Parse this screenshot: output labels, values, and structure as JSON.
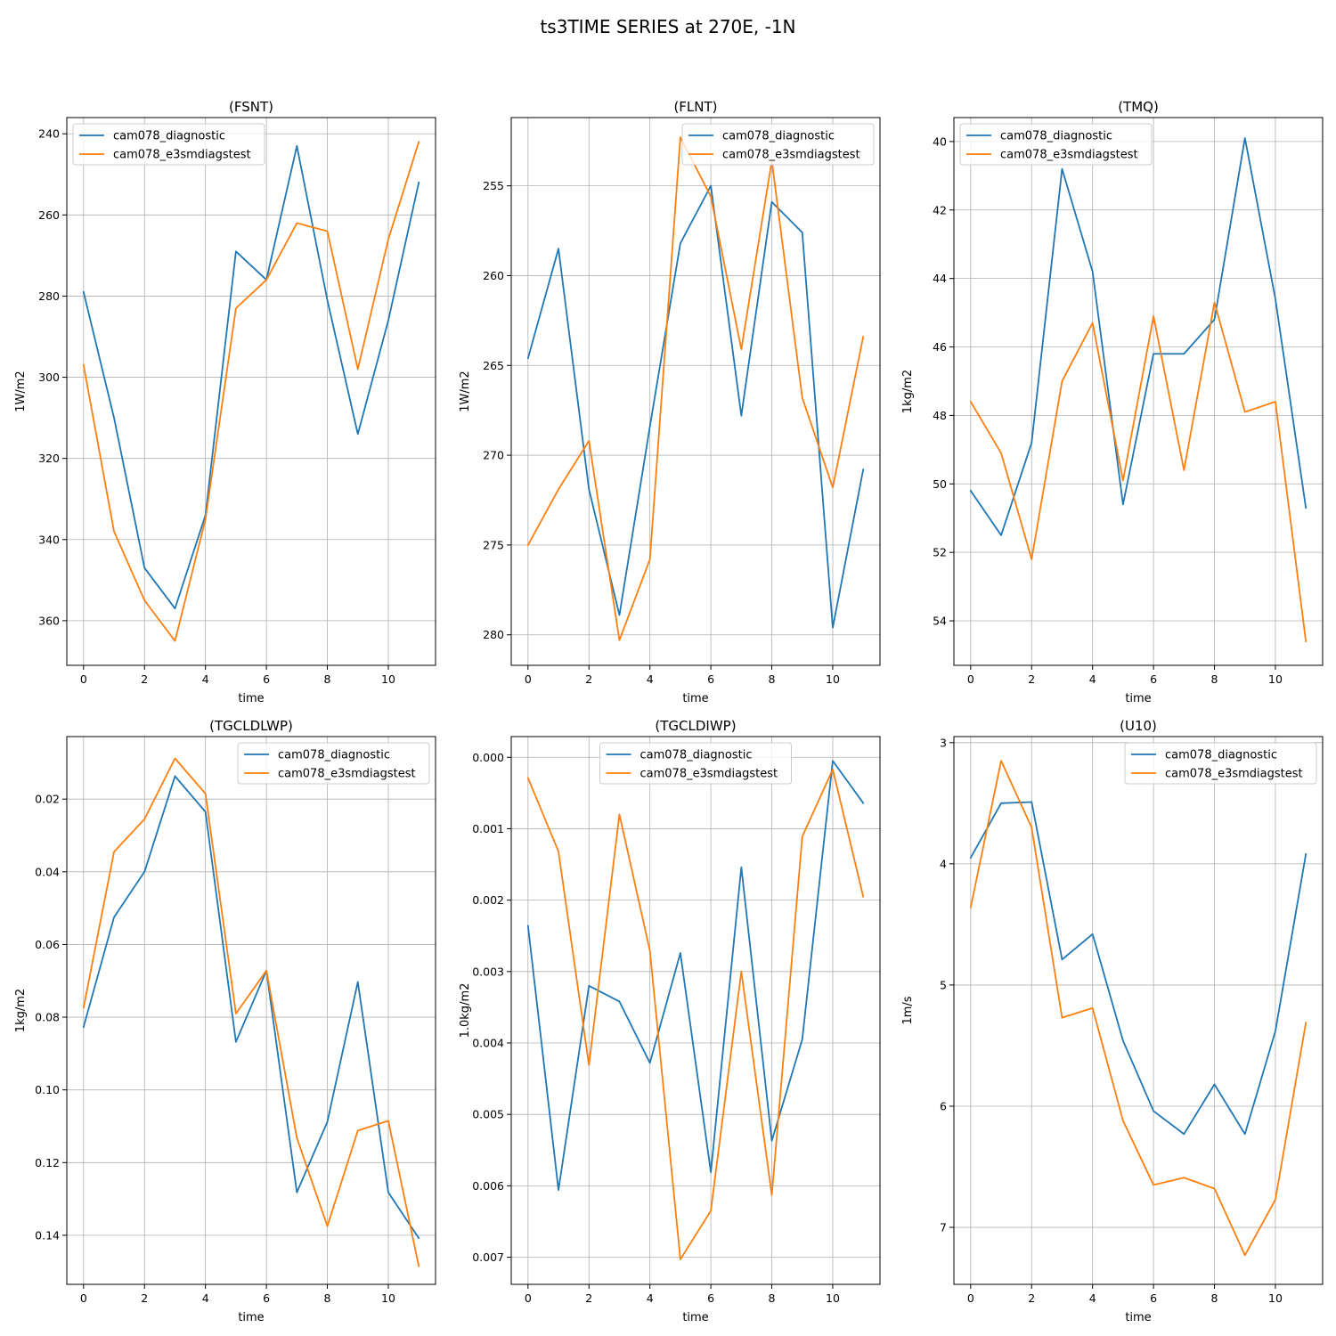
{
  "figure": {
    "title": "ts3TIME SERIES at 270E, -1N"
  },
  "colors": {
    "cam078_diagnostic": "#1f77b4",
    "cam078_e3smdiagstest": "#ff7f0e"
  },
  "chart_data": [
    {
      "type": "line",
      "title": "(FSNT)",
      "xlabel": "time",
      "ylabel": "1W/m2",
      "y_inverted": true,
      "grid": true,
      "legend_position": "upper-left",
      "xlim": [
        -0.55,
        11.55
      ],
      "ylim": [
        236,
        371
      ],
      "xticks": [
        0,
        2,
        4,
        6,
        8,
        10
      ],
      "xtick_labels": [
        "0",
        "2",
        "4",
        "6",
        "8",
        "10"
      ],
      "yticks": [
        240,
        260,
        280,
        300,
        320,
        340,
        360
      ],
      "ytick_labels": [
        "240",
        "260",
        "280",
        "300",
        "320",
        "340",
        "360"
      ],
      "x": [
        0,
        1,
        2,
        3,
        4,
        5,
        6,
        7,
        8,
        9,
        10,
        11
      ],
      "series": [
        {
          "name": "cam078_diagnostic",
          "values": [
            279,
            310,
            347,
            357,
            334,
            269,
            276,
            243,
            281,
            314,
            286,
            252
          ]
        },
        {
          "name": "cam078_e3smdiagstest",
          "values": [
            297,
            338,
            355,
            365,
            335,
            283,
            276,
            262,
            264,
            298,
            266,
            242
          ]
        }
      ]
    },
    {
      "type": "line",
      "title": "(FLNT)",
      "xlabel": "time",
      "ylabel": "1W/m2",
      "y_inverted": true,
      "grid": true,
      "legend_position": "upper-right",
      "xlim": [
        -0.55,
        11.55
      ],
      "ylim": [
        251.2,
        281.7
      ],
      "xticks": [
        0,
        2,
        4,
        6,
        8,
        10
      ],
      "xtick_labels": [
        "0",
        "2",
        "4",
        "6",
        "8",
        "10"
      ],
      "yticks": [
        255,
        260,
        265,
        270,
        275,
        280
      ],
      "ytick_labels": [
        "255",
        "260",
        "265",
        "270",
        "275",
        "280"
      ],
      "x": [
        0,
        1,
        2,
        3,
        4,
        5,
        6,
        7,
        8,
        9,
        10,
        11
      ],
      "series": [
        {
          "name": "cam078_diagnostic",
          "values": [
            264.6,
            258.5,
            271.9,
            278.9,
            268.4,
            258.2,
            255.0,
            267.8,
            255.9,
            257.6,
            279.6,
            270.8
          ]
        },
        {
          "name": "cam078_e3smdiagstest",
          "values": [
            275.0,
            271.9,
            269.2,
            280.3,
            275.8,
            252.3,
            255.6,
            264.1,
            253.6,
            266.8,
            271.8,
            263.4
          ]
        }
      ]
    },
    {
      "type": "line",
      "title": "(TMQ)",
      "xlabel": "time",
      "ylabel": "1kg/m2",
      "y_inverted": true,
      "grid": true,
      "legend_position": "upper-left",
      "xlim": [
        -0.55,
        11.55
      ],
      "ylim": [
        39.3,
        55.3
      ],
      "xticks": [
        0,
        2,
        4,
        6,
        8,
        10
      ],
      "xtick_labels": [
        "0",
        "2",
        "4",
        "6",
        "8",
        "10"
      ],
      "yticks": [
        40,
        42,
        44,
        46,
        48,
        50,
        52,
        54
      ],
      "ytick_labels": [
        "40",
        "42",
        "44",
        "46",
        "48",
        "50",
        "52",
        "54"
      ],
      "x": [
        0,
        1,
        2,
        3,
        4,
        5,
        6,
        7,
        8,
        9,
        10,
        11
      ],
      "series": [
        {
          "name": "cam078_diagnostic",
          "values": [
            50.2,
            51.5,
            48.8,
            40.8,
            43.8,
            50.6,
            46.2,
            46.2,
            45.2,
            39.9,
            44.6,
            50.7
          ]
        },
        {
          "name": "cam078_e3smdiagstest",
          "values": [
            47.6,
            49.1,
            52.2,
            47.0,
            45.3,
            49.9,
            45.1,
            49.6,
            44.7,
            47.9,
            47.6,
            54.6
          ]
        }
      ]
    },
    {
      "type": "line",
      "title": "(TGCLDLWP)",
      "xlabel": "time",
      "ylabel": "1kg/m2",
      "y_inverted": true,
      "grid": true,
      "legend_position": "upper-right",
      "xlim": [
        -0.55,
        11.55
      ],
      "ylim": [
        0.0028,
        0.1535
      ],
      "xticks": [
        0,
        2,
        4,
        6,
        8,
        10
      ],
      "xtick_labels": [
        "0",
        "2",
        "4",
        "6",
        "8",
        "10"
      ],
      "yticks": [
        0.02,
        0.04,
        0.06,
        0.08,
        0.1,
        0.12,
        0.14
      ],
      "ytick_labels": [
        "0.02",
        "0.04",
        "0.06",
        "0.08",
        "0.10",
        "0.12",
        "0.14"
      ],
      "x": [
        0,
        1,
        2,
        3,
        4,
        5,
        6,
        7,
        8,
        9,
        10,
        11
      ],
      "series": [
        {
          "name": "cam078_diagnostic",
          "values": [
            0.0827,
            0.0525,
            0.04,
            0.0137,
            0.0235,
            0.0868,
            0.0672,
            0.1282,
            0.1088,
            0.0703,
            0.1282,
            0.1408
          ]
        },
        {
          "name": "cam078_e3smdiagstest",
          "values": [
            0.0774,
            0.0345,
            0.0255,
            0.0088,
            0.0185,
            0.079,
            0.0672,
            0.1132,
            0.1375,
            0.1112,
            0.1085,
            0.1485
          ]
        }
      ]
    },
    {
      "type": "line",
      "title": "(TGCLDIWP)",
      "xlabel": "time",
      "ylabel": "1.0kg/m2",
      "y_inverted": true,
      "grid": true,
      "legend_position": "upper-center",
      "xlim": [
        -0.55,
        11.55
      ],
      "ylim": [
        -0.00029,
        0.00738
      ],
      "xticks": [
        0,
        2,
        4,
        6,
        8,
        10
      ],
      "xtick_labels": [
        "0",
        "2",
        "4",
        "6",
        "8",
        "10"
      ],
      "yticks": [
        0.0,
        0.001,
        0.002,
        0.003,
        0.004,
        0.005,
        0.006,
        0.007
      ],
      "ytick_labels": [
        "0.000",
        "0.001",
        "0.002",
        "0.003",
        "0.004",
        "0.005",
        "0.006",
        "0.007"
      ],
      "x": [
        0,
        1,
        2,
        3,
        4,
        5,
        6,
        7,
        8,
        9,
        10,
        11
      ],
      "series": [
        {
          "name": "cam078_diagnostic",
          "values": [
            0.00236,
            0.00606,
            0.0032,
            0.00342,
            0.00428,
            0.00274,
            0.00581,
            0.00154,
            0.00537,
            0.00395,
            5e-05,
            0.00064
          ]
        },
        {
          "name": "cam078_e3smdiagstest",
          "values": [
            0.00029,
            0.00132,
            0.00431,
            0.0008,
            0.00271,
            0.00703,
            0.00635,
            0.003,
            0.00613,
            0.00111,
            0.00017,
            0.00195
          ]
        }
      ]
    },
    {
      "type": "line",
      "title": "(U10)",
      "xlabel": "time",
      "ylabel": "1m/s",
      "y_inverted": true,
      "grid": true,
      "legend_position": "upper-right",
      "xlim": [
        -0.55,
        11.55
      ],
      "ylim": [
        2.95,
        7.47
      ],
      "xticks": [
        0,
        2,
        4,
        6,
        8,
        10
      ],
      "xtick_labels": [
        "0",
        "2",
        "4",
        "6",
        "8",
        "10"
      ],
      "yticks": [
        3,
        4,
        5,
        6,
        7
      ],
      "ytick_labels": [
        "3",
        "4",
        "5",
        "6",
        "7"
      ],
      "x": [
        0,
        1,
        2,
        3,
        4,
        5,
        6,
        7,
        8,
        9,
        10,
        11
      ],
      "series": [
        {
          "name": "cam078_diagnostic",
          "values": [
            3.95,
            3.5,
            3.49,
            4.79,
            4.58,
            5.46,
            6.04,
            6.23,
            5.82,
            6.23,
            5.38,
            3.92
          ]
        },
        {
          "name": "cam078_e3smdiagstest",
          "values": [
            4.36,
            3.15,
            3.7,
            5.27,
            5.19,
            6.12,
            6.65,
            6.59,
            6.68,
            7.23,
            6.77,
            5.31
          ]
        }
      ]
    }
  ]
}
